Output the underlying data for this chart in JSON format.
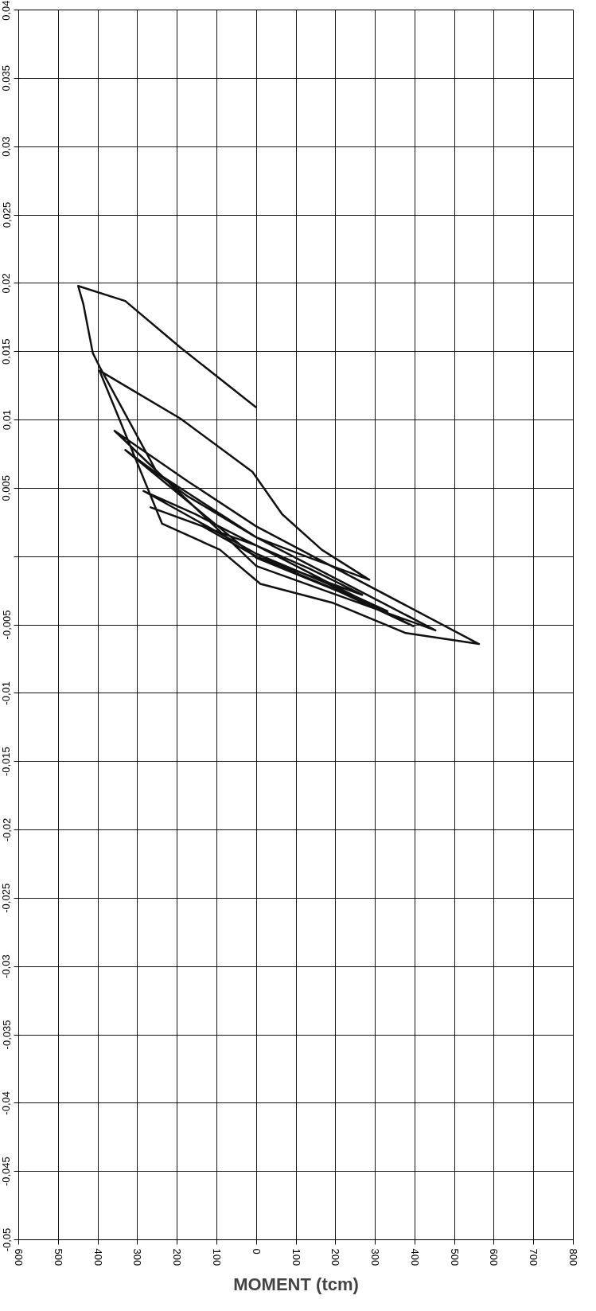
{
  "chart_data": {
    "type": "line",
    "xlabel": "MOMENT (tcm)",
    "series": [
      {
        "color": "#111111",
        "x": [
          0,
          267,
          135,
          0,
          -267,
          -135,
          0,
          331,
          173,
          0,
          -285,
          -154,
          0,
          396,
          212,
          0,
          -331,
          -173,
          0,
          452,
          231,
          0,
          -358,
          -173,
          0,
          562,
          377,
          194,
          10,
          -92,
          -238,
          -396,
          -192,
          -10,
          65,
          165,
          285,
          135,
          0,
          -250,
          -396,
          -413,
          -437,
          -450,
          -331,
          -192,
          0
        ],
        "values": [
          0,
          -0.0028,
          -0.0009,
          0.0008,
          0.0036,
          0.0022,
          0,
          -0.004,
          -0.0019,
          0.0002,
          0.0048,
          0.0031,
          0.0008,
          -0.0051,
          -0.0026,
          -0.0001,
          0.0078,
          0.0044,
          0.0014,
          -0.0054,
          -0.0031,
          -0.0007,
          0.0092,
          0.0055,
          0.0022,
          -0.0064,
          -0.0056,
          -0.0034,
          -0.002,
          0.0005,
          0.0024,
          0.0136,
          0.0101,
          0.0062,
          0.0031,
          0.0005,
          -0.0017,
          -0.0001,
          0.0014,
          0.0061,
          0.0139,
          0.0149,
          0.0185,
          0.0198,
          0.0187,
          0.0153,
          0.0109
        ]
      }
    ],
    "xlim": [
      -600,
      800
    ],
    "xticks": [
      {
        "value": -600,
        "label": "600"
      },
      {
        "value": -500,
        "label": "500"
      },
      {
        "value": -400,
        "label": "400"
      },
      {
        "value": -300,
        "label": "300"
      },
      {
        "value": -200,
        "label": "200"
      },
      {
        "value": -100,
        "label": "100"
      },
      0,
      100,
      200,
      300,
      400,
      500,
      600,
      700,
      800
    ],
    "ylim": [
      -0.05,
      0.04
    ],
    "yticks": [
      {
        "value": -0.05,
        "label": "-0,05"
      },
      {
        "value": -0.045,
        "label": "-0,045"
      },
      {
        "value": -0.04,
        "label": "-0,04"
      },
      {
        "value": -0.035,
        "label": "-0,035"
      },
      {
        "value": -0.03,
        "label": "-0,03"
      },
      {
        "value": -0.025,
        "label": "-0,025"
      },
      {
        "value": -0.02,
        "label": "-0,02"
      },
      {
        "value": -0.015,
        "label": "-0,015"
      },
      {
        "value": -0.01,
        "label": "-0,01"
      },
      {
        "value": -0.005,
        "label": "-0,005"
      },
      {
        "value": 0,
        "label": null
      },
      {
        "value": 0.005,
        "label": "0,005"
      },
      {
        "value": 0.01,
        "label": "0,01"
      },
      {
        "value": 0.015,
        "label": "0,015"
      },
      {
        "value": 0.02,
        "label": "0,02"
      },
      {
        "value": 0.025,
        "label": "0,025"
      },
      {
        "value": 0.03,
        "label": "0,03"
      },
      {
        "value": 0.035,
        "label": "0,035"
      },
      {
        "value": 0.04,
        "label": "0,04"
      }
    ],
    "grid": true,
    "line_style": "solid",
    "marker": "none"
  }
}
